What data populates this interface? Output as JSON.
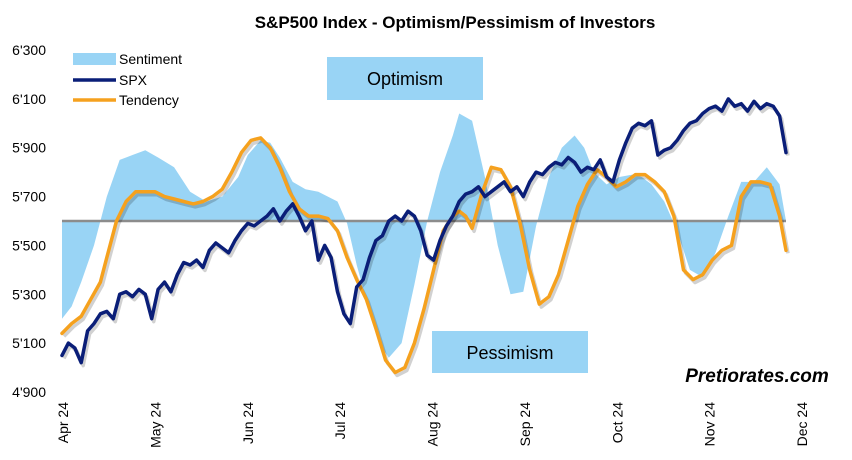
{
  "chart_data": {
    "type": "line",
    "title": "S&P500 Index - Optimism/Pessimism of Investors",
    "y_ticks": [
      "6'300",
      "6'100",
      "5'900",
      "5'700",
      "5'500",
      "5'300",
      "5'100",
      "4'900"
    ],
    "ylim": [
      4900,
      6300
    ],
    "baseline": 5600,
    "x_ticks": [
      "Apr 24",
      "May 24",
      "Jun 24",
      "Jul 24",
      "Aug 24",
      "Sep 24",
      "Oct 24",
      "Nov 24",
      "Dec 24"
    ],
    "legend": [
      "Sentiment",
      "SPX",
      "Tendency"
    ],
    "legend_position": "top-left",
    "colors": {
      "sentiment": "#99d4f5",
      "spx": "#0a1e78",
      "tendency": "#f5a11e",
      "baseline": "#8c8c8c"
    },
    "annotations": {
      "optimism": "Optimism",
      "pessimism": "Pessimism"
    },
    "brand": "Pretiorates.com",
    "series": [
      {
        "name": "Sentiment",
        "x": [
          0,
          3,
          6,
          10,
          14,
          18,
          22,
          26,
          30,
          35,
          40,
          45,
          50,
          55,
          58,
          62,
          65,
          68,
          72,
          76,
          80,
          83,
          86,
          89,
          92,
          96,
          99,
          102,
          106,
          110,
          114,
          118,
          122,
          124,
          128,
          132,
          136,
          140,
          144,
          148,
          152,
          156,
          160,
          163,
          166,
          170,
          174,
          178,
          181,
          184,
          188,
          192,
          196,
          200,
          204,
          208,
          212,
          216,
          220,
          224,
          226
        ],
        "values": [
          5200,
          5250,
          5350,
          5500,
          5700,
          5850,
          5870,
          5890,
          5860,
          5820,
          5720,
          5680,
          5700,
          5780,
          5870,
          5930,
          5920,
          5860,
          5760,
          5730,
          5720,
          5700,
          5680,
          5590,
          5420,
          5230,
          5100,
          5040,
          5100,
          5340,
          5600,
          5800,
          5950,
          6040,
          6010,
          5780,
          5500,
          5300,
          5310,
          5580,
          5780,
          5900,
          5950,
          5900,
          5800,
          5750,
          5780,
          5790,
          5780,
          5750,
          5680,
          5560,
          5400,
          5370,
          5470,
          5620,
          5760,
          5760,
          5820,
          5750,
          5600
        ]
      },
      {
        "name": "SPX",
        "x": [
          0,
          2,
          4,
          6,
          8,
          10,
          12,
          14,
          16,
          18,
          20,
          22,
          24,
          26,
          28,
          30,
          32,
          34,
          36,
          38,
          40,
          42,
          44,
          46,
          48,
          50,
          52,
          54,
          56,
          58,
          60,
          62,
          64,
          66,
          68,
          70,
          72,
          74,
          76,
          78,
          80,
          82,
          84,
          86,
          88,
          90,
          92,
          94,
          96,
          98,
          100,
          102,
          104,
          106,
          108,
          110,
          112,
          114,
          116,
          118,
          120,
          122,
          124,
          126,
          128,
          130,
          132,
          134,
          136,
          138,
          140,
          142,
          144,
          146,
          148,
          150,
          152,
          154,
          156,
          158,
          160,
          162,
          164,
          166,
          168,
          170,
          172,
          174,
          176,
          178,
          180,
          182,
          184,
          186,
          188,
          190,
          192,
          194,
          196,
          198,
          200,
          202,
          204,
          206,
          208,
          210,
          212,
          214,
          216,
          218,
          220,
          222,
          224,
          226
        ],
        "values": [
          5050,
          5100,
          5080,
          5020,
          5150,
          5180,
          5220,
          5230,
          5200,
          5300,
          5310,
          5290,
          5320,
          5300,
          5200,
          5320,
          5350,
          5310,
          5380,
          5430,
          5420,
          5440,
          5410,
          5480,
          5510,
          5490,
          5470,
          5520,
          5560,
          5590,
          5580,
          5600,
          5620,
          5650,
          5600,
          5640,
          5670,
          5620,
          5560,
          5600,
          5440,
          5500,
          5450,
          5310,
          5220,
          5180,
          5330,
          5360,
          5450,
          5520,
          5540,
          5600,
          5620,
          5600,
          5640,
          5620,
          5560,
          5460,
          5440,
          5520,
          5580,
          5620,
          5680,
          5710,
          5720,
          5740,
          5700,
          5720,
          5740,
          5760,
          5720,
          5740,
          5700,
          5760,
          5800,
          5790,
          5820,
          5840,
          5830,
          5860,
          5840,
          5800,
          5820,
          5810,
          5850,
          5780,
          5760,
          5850,
          5920,
          5980,
          6000,
          5990,
          6010,
          5870,
          5890,
          5900,
          5930,
          5970,
          6000,
          6010,
          6040,
          6060,
          6070,
          6050,
          6100,
          6070,
          6080,
          6050,
          6090,
          6060,
          6080,
          6070,
          6030,
          5880
        ]
      },
      {
        "name": "Tendency",
        "x": [
          0,
          3,
          6,
          9,
          12,
          14,
          17,
          20,
          23,
          26,
          29,
          32,
          35,
          38,
          41,
          44,
          47,
          50,
          53,
          56,
          59,
          62,
          65,
          68,
          71,
          74,
          77,
          80,
          83,
          86,
          89,
          92,
          95,
          98,
          101,
          104,
          107,
          110,
          113,
          116,
          119,
          122,
          124,
          126,
          128,
          131,
          134,
          137,
          140,
          143,
          146,
          149,
          152,
          155,
          158,
          161,
          164,
          167,
          170,
          173,
          176,
          179,
          182,
          185,
          188,
          191,
          194,
          197,
          200,
          203,
          206,
          209,
          212,
          215,
          218,
          221,
          224,
          226
        ],
        "values": [
          5140,
          5180,
          5210,
          5280,
          5350,
          5450,
          5600,
          5680,
          5720,
          5720,
          5720,
          5700,
          5690,
          5680,
          5670,
          5680,
          5700,
          5730,
          5800,
          5880,
          5930,
          5940,
          5900,
          5820,
          5720,
          5650,
          5620,
          5620,
          5610,
          5560,
          5450,
          5360,
          5280,
          5160,
          5030,
          4980,
          5000,
          5100,
          5240,
          5400,
          5560,
          5620,
          5640,
          5620,
          5570,
          5710,
          5820,
          5810,
          5740,
          5590,
          5400,
          5260,
          5290,
          5380,
          5520,
          5660,
          5750,
          5810,
          5780,
          5740,
          5760,
          5790,
          5790,
          5760,
          5720,
          5620,
          5400,
          5360,
          5380,
          5440,
          5480,
          5500,
          5700,
          5760,
          5760,
          5750,
          5620,
          5480
        ]
      }
    ]
  }
}
